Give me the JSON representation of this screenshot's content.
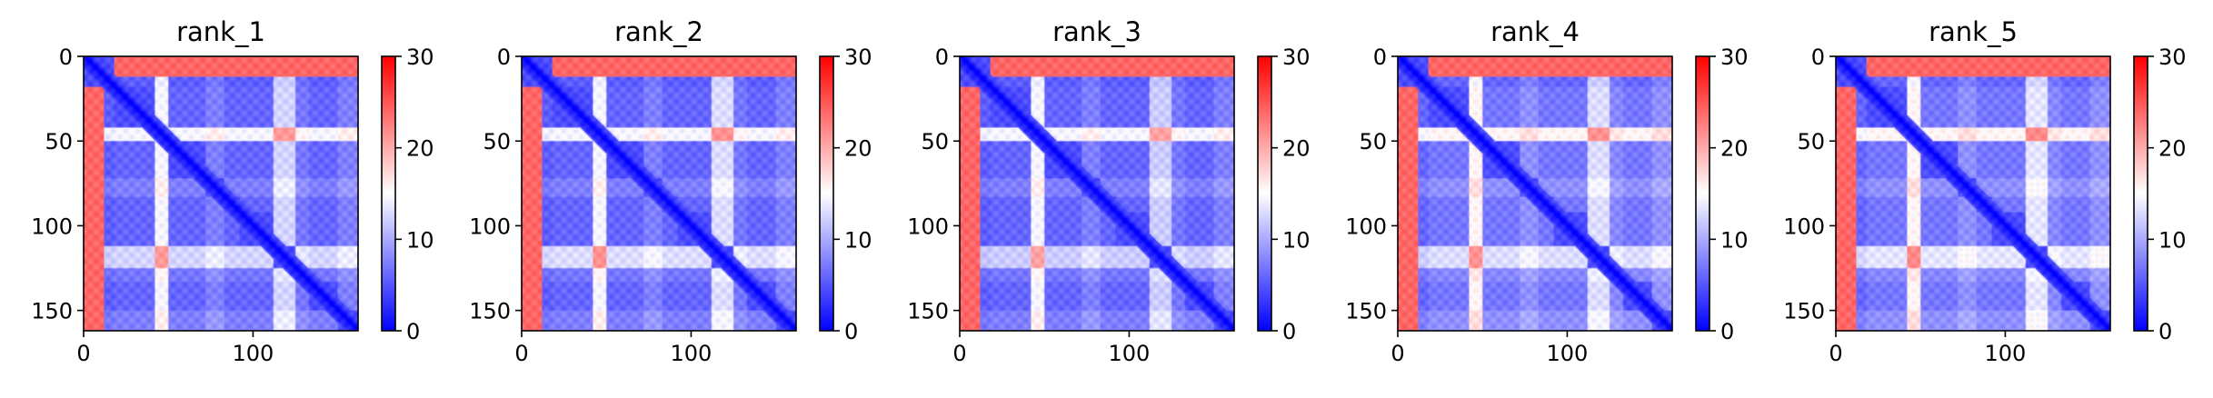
{
  "figure": {
    "colormap": {
      "name": "bwr",
      "low_color": "#0000ff",
      "mid_color": "#ffffff",
      "high_color": "#ff0000"
    }
  },
  "chart_data": [
    {
      "type": "heatmap",
      "title": "rank_1",
      "xlabel": "",
      "ylabel": "",
      "size": 162,
      "xlim": [
        0,
        162
      ],
      "ylim": [
        162,
        0
      ],
      "x_ticks": [
        0,
        100
      ],
      "x_tick_labels": [
        "0",
        "100"
      ],
      "y_ticks": [
        0,
        50,
        100,
        150
      ],
      "y_tick_labels": [
        "0",
        "50",
        "100",
        "150"
      ],
      "colorbar": {
        "vmin": 0,
        "vmax": 30,
        "ticks": [
          0,
          10,
          20,
          30
        ],
        "tick_labels": [
          "0",
          "10",
          "20",
          "30"
        ]
      },
      "segments": [
        [
          0,
          18,
          2
        ],
        [
          18,
          42,
          3
        ],
        [
          42,
          50,
          20
        ],
        [
          50,
          72,
          3
        ],
        [
          72,
          83,
          6
        ],
        [
          83,
          92,
          3
        ],
        [
          92,
          112,
          3
        ],
        [
          112,
          125,
          16
        ],
        [
          125,
          133,
          5
        ],
        [
          133,
          150,
          3
        ],
        [
          150,
          162,
          6
        ]
      ]
    },
    {
      "type": "heatmap",
      "title": "rank_2",
      "xlabel": "",
      "ylabel": "",
      "size": 162,
      "xlim": [
        0,
        162
      ],
      "ylim": [
        162,
        0
      ],
      "x_ticks": [
        0,
        100
      ],
      "x_tick_labels": [
        "0",
        "100"
      ],
      "y_ticks": [
        0,
        50,
        100,
        150
      ],
      "y_tick_labels": [
        "0",
        "50",
        "100",
        "150"
      ],
      "colorbar": {
        "vmin": 0,
        "vmax": 30,
        "ticks": [
          0,
          10,
          20,
          30
        ],
        "tick_labels": [
          "0",
          "10",
          "20",
          "30"
        ]
      },
      "segments": [
        [
          0,
          18,
          2
        ],
        [
          18,
          42,
          3
        ],
        [
          42,
          50,
          20
        ],
        [
          50,
          72,
          3
        ],
        [
          72,
          83,
          6
        ],
        [
          83,
          92,
          3
        ],
        [
          92,
          112,
          3
        ],
        [
          112,
          125,
          17
        ],
        [
          125,
          133,
          5
        ],
        [
          133,
          150,
          3
        ],
        [
          150,
          162,
          6
        ]
      ]
    },
    {
      "type": "heatmap",
      "title": "rank_3",
      "xlabel": "",
      "ylabel": "",
      "size": 162,
      "xlim": [
        0,
        162
      ],
      "ylim": [
        162,
        0
      ],
      "x_ticks": [
        0,
        100
      ],
      "x_tick_labels": [
        "0",
        "100"
      ],
      "y_ticks": [
        0,
        50,
        100,
        150
      ],
      "y_tick_labels": [
        "0",
        "50",
        "100",
        "150"
      ],
      "colorbar": {
        "vmin": 0,
        "vmax": 30,
        "ticks": [
          0,
          10,
          20,
          30
        ],
        "tick_labels": [
          "0",
          "10",
          "20",
          "30"
        ]
      },
      "segments": [
        [
          0,
          18,
          2
        ],
        [
          18,
          42,
          3
        ],
        [
          42,
          50,
          20
        ],
        [
          50,
          72,
          3
        ],
        [
          72,
          83,
          6
        ],
        [
          83,
          92,
          3
        ],
        [
          92,
          112,
          3
        ],
        [
          112,
          125,
          15
        ],
        [
          125,
          133,
          5
        ],
        [
          133,
          150,
          3
        ],
        [
          150,
          162,
          6
        ]
      ]
    },
    {
      "type": "heatmap",
      "title": "rank_4",
      "xlabel": "",
      "ylabel": "",
      "size": 162,
      "xlim": [
        0,
        162
      ],
      "ylim": [
        162,
        0
      ],
      "x_ticks": [
        0,
        100
      ],
      "x_tick_labels": [
        "0",
        "100"
      ],
      "y_ticks": [
        0,
        50,
        100,
        150
      ],
      "y_tick_labels": [
        "0",
        "50",
        "100",
        "150"
      ],
      "colorbar": {
        "vmin": 0,
        "vmax": 30,
        "ticks": [
          0,
          10,
          20,
          30
        ],
        "tick_labels": [
          "0",
          "10",
          "20",
          "30"
        ]
      },
      "segments": [
        [
          0,
          18,
          2
        ],
        [
          18,
          42,
          4
        ],
        [
          42,
          50,
          21
        ],
        [
          50,
          72,
          4
        ],
        [
          72,
          83,
          7
        ],
        [
          83,
          92,
          4
        ],
        [
          92,
          112,
          4
        ],
        [
          112,
          125,
          16
        ],
        [
          125,
          133,
          6
        ],
        [
          133,
          150,
          4
        ],
        [
          150,
          162,
          7
        ]
      ]
    },
    {
      "type": "heatmap",
      "title": "rank_5",
      "xlabel": "",
      "ylabel": "",
      "size": 162,
      "xlim": [
        0,
        162
      ],
      "ylim": [
        162,
        0
      ],
      "x_ticks": [
        0,
        100
      ],
      "x_tick_labels": [
        "0",
        "100"
      ],
      "y_ticks": [
        0,
        50,
        100,
        150
      ],
      "y_tick_labels": [
        "0",
        "50",
        "100",
        "150"
      ],
      "colorbar": {
        "vmin": 0,
        "vmax": 30,
        "ticks": [
          0,
          10,
          20,
          30
        ],
        "tick_labels": [
          "0",
          "10",
          "20",
          "30"
        ]
      },
      "segments": [
        [
          0,
          18,
          2
        ],
        [
          18,
          42,
          4
        ],
        [
          42,
          50,
          21
        ],
        [
          50,
          72,
          4
        ],
        [
          72,
          83,
          7
        ],
        [
          83,
          92,
          4
        ],
        [
          92,
          112,
          4
        ],
        [
          112,
          125,
          17
        ],
        [
          125,
          133,
          6
        ],
        [
          133,
          150,
          4
        ],
        [
          150,
          162,
          7
        ]
      ]
    }
  ]
}
